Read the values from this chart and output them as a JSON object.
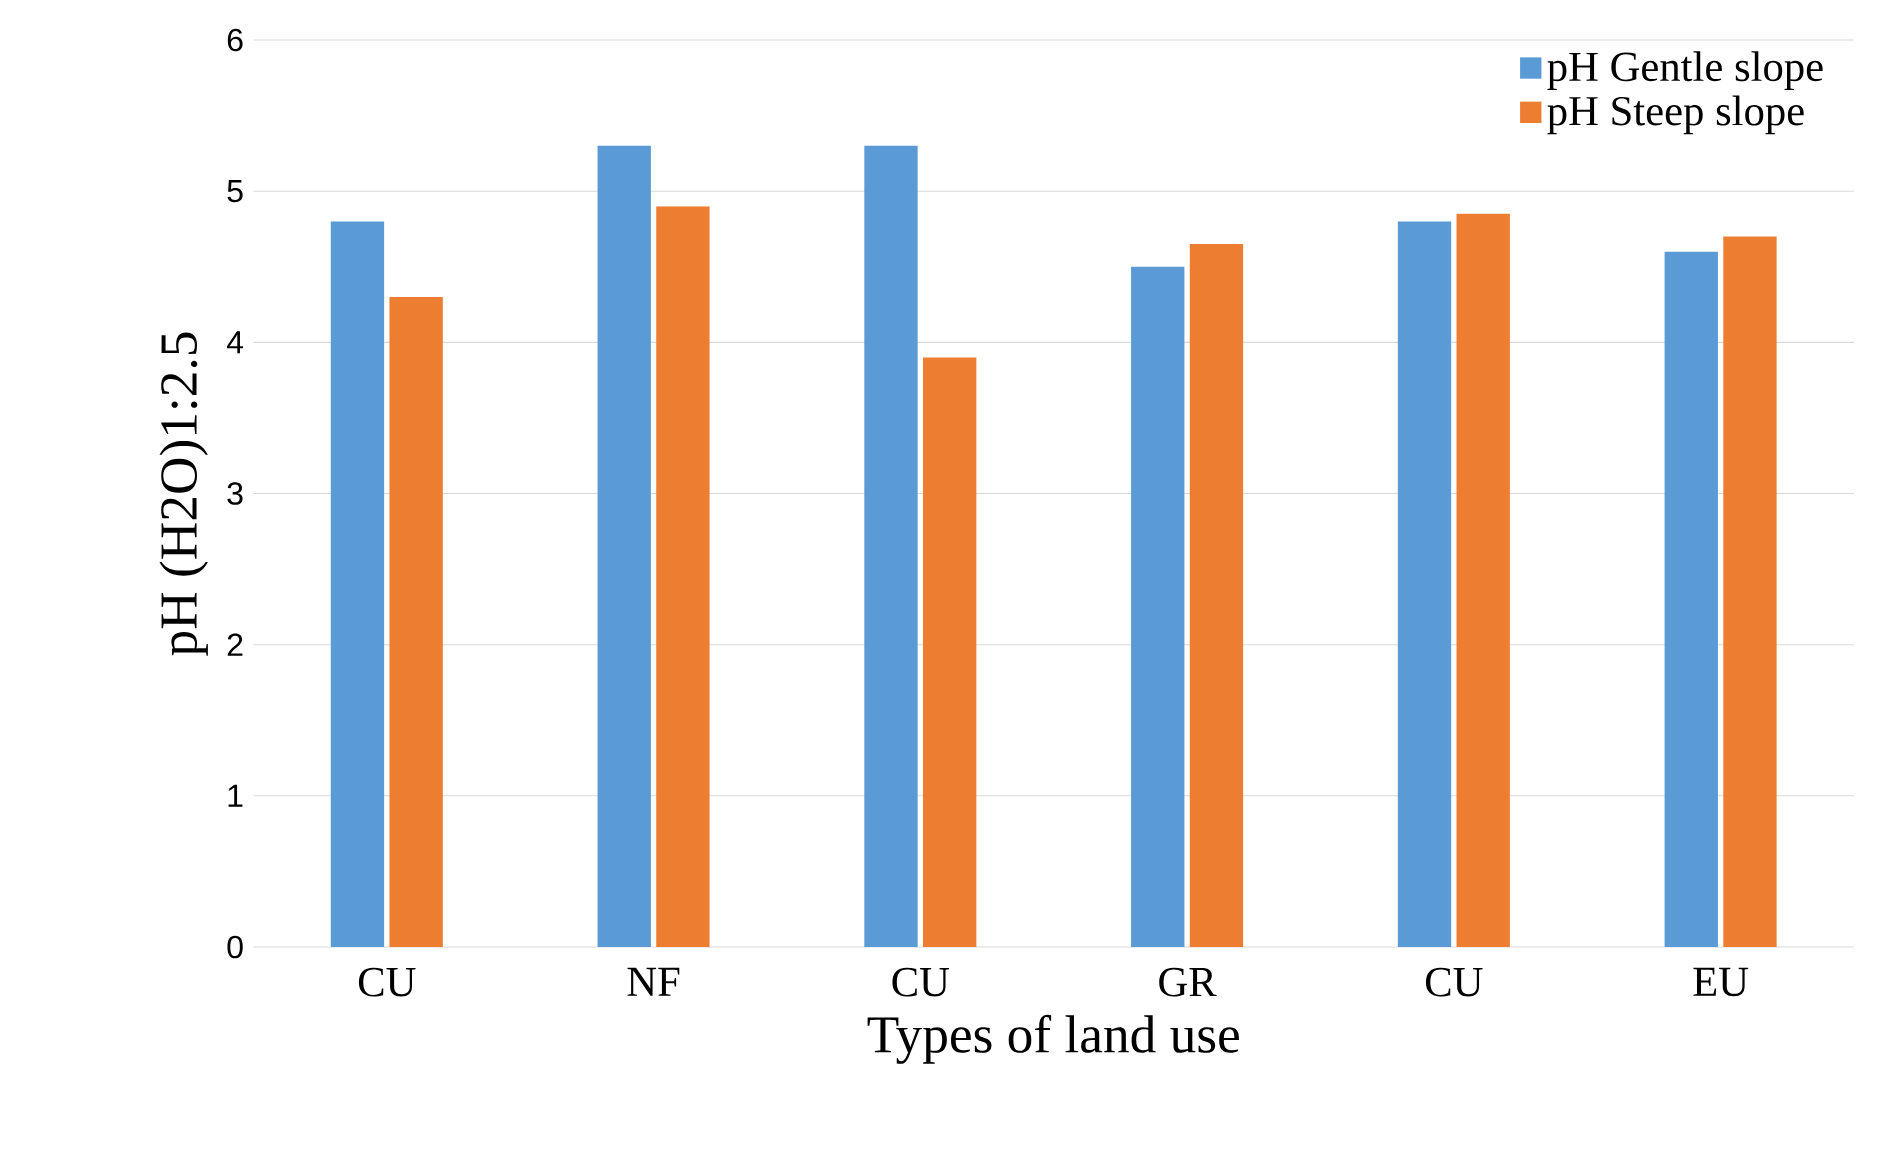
{
  "chart_data": {
    "type": "bar",
    "xlabel": "Types of land use",
    "ylabel": "pH (H2O)1:2.5",
    "categories": [
      "CU",
      "NF",
      "CU",
      "GR",
      "CU",
      "EU"
    ],
    "series": [
      {
        "name": "pH Gentle slope",
        "color": "#5b9bd5",
        "values": [
          4.8,
          5.3,
          5.3,
          4.5,
          4.8,
          4.6
        ]
      },
      {
        "name": "pH Steep slope",
        "color": "#ed7d31",
        "values": [
          4.3,
          4.9,
          3.9,
          4.65,
          4.85,
          4.7
        ]
      }
    ],
    "ylim": [
      0,
      6
    ],
    "yticks": [
      0,
      1,
      2,
      3,
      4,
      5,
      6
    ],
    "grid": "y",
    "legend": "top right"
  }
}
